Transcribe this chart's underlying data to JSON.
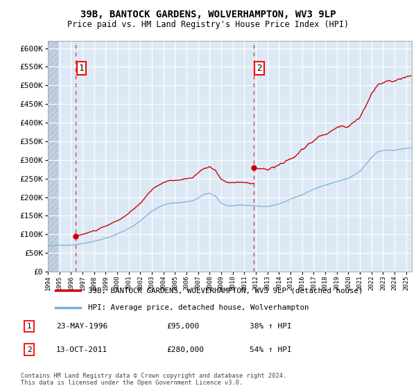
{
  "title1": "39B, BANTOCK GARDENS, WOLVERHAMPTON, WV3 9LP",
  "title2": "Price paid vs. HM Land Registry's House Price Index (HPI)",
  "ylim": [
    0,
    620000
  ],
  "yticks": [
    0,
    50000,
    100000,
    150000,
    200000,
    250000,
    300000,
    350000,
    400000,
    450000,
    500000,
    550000,
    600000
  ],
  "ytick_labels": [
    "£0",
    "£50K",
    "£100K",
    "£150K",
    "£200K",
    "£250K",
    "£300K",
    "£350K",
    "£400K",
    "£450K",
    "£500K",
    "£550K",
    "£600K"
  ],
  "background_color": "#dce9f5",
  "grid_color": "#ffffff",
  "sale1_date": 1996.38,
  "sale1_price": 95000,
  "sale1_label": "1",
  "sale1_text": "23-MAY-1996",
  "sale1_amount": "£95,000",
  "sale1_hpi": "38% ↑ HPI",
  "sale2_date": 2011.79,
  "sale2_price": 280000,
  "sale2_label": "2",
  "sale2_text": "13-OCT-2011",
  "sale2_amount": "£280,000",
  "sale2_hpi": "54% ↑ HPI",
  "line1_color": "#cc0000",
  "line2_color": "#7ab0d4",
  "dot_color": "#cc0000",
  "vline_color": "#cc4444",
  "legend1_label": "39B, BANTOCK GARDENS, WOLVERHAMPTON, WV3 9LP (detached house)",
  "legend2_label": "HPI: Average price, detached house, Wolverhampton",
  "footer": "Contains HM Land Registry data © Crown copyright and database right 2024.\nThis data is licensed under the Open Government Licence v3.0.",
  "xmin": 1994.0,
  "xmax": 2025.5,
  "hatch_xmax": 1994.92
}
